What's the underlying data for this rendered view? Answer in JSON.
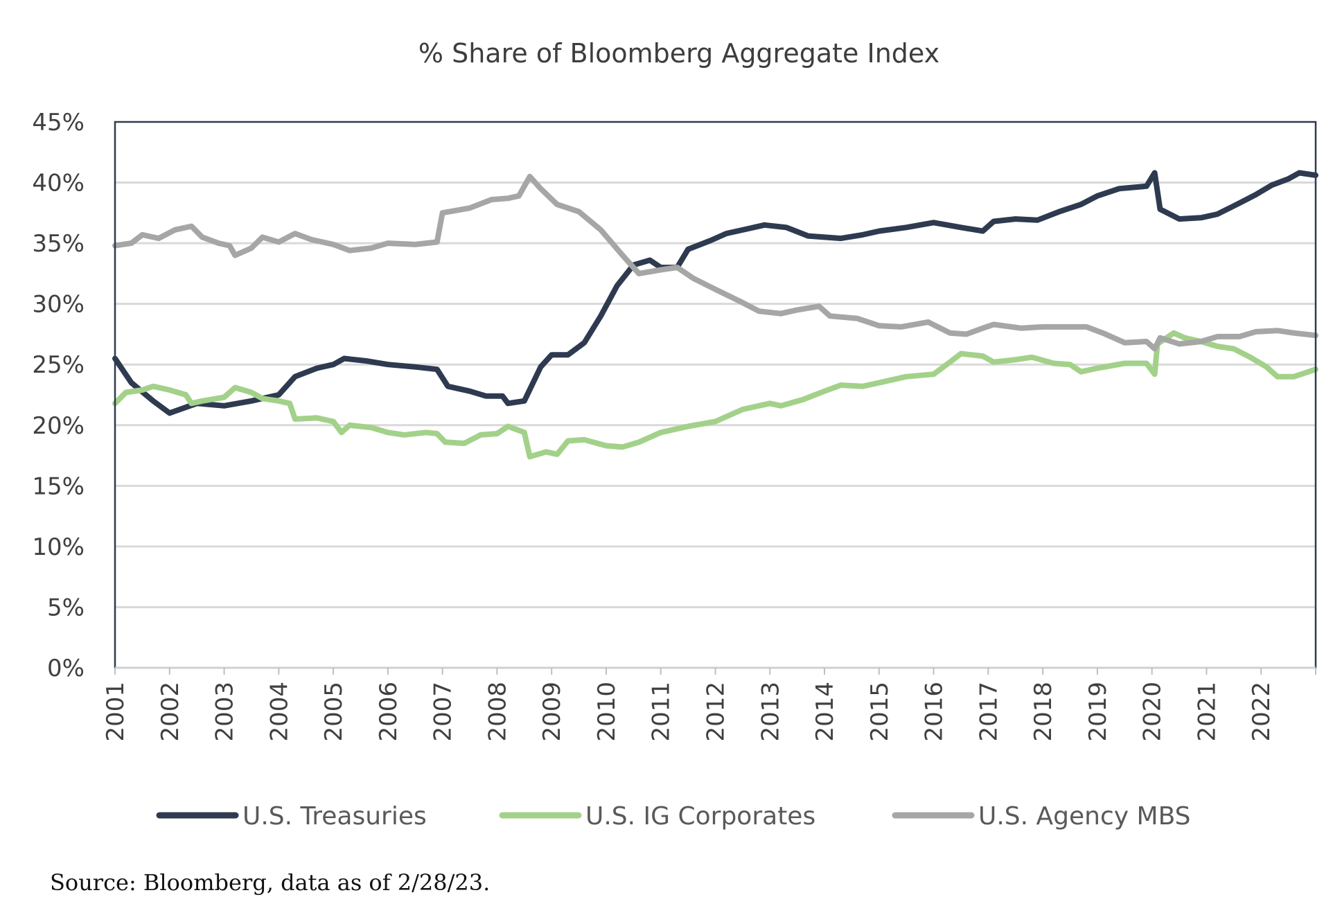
{
  "chart_data": {
    "type": "line",
    "title": "% Share of Bloomberg Aggregate Index",
    "xlabel": "",
    "ylabel": "",
    "xlim": [
      2001,
      2023
    ],
    "ylim": [
      0,
      45
    ],
    "y_ticks": [
      "0%",
      "5%",
      "10%",
      "15%",
      "20%",
      "25%",
      "30%",
      "35%",
      "40%",
      "45%"
    ],
    "x_ticks": [
      "2001",
      "2002",
      "2003",
      "2004",
      "2005",
      "2006",
      "2007",
      "2008",
      "2009",
      "2010",
      "2011",
      "2012",
      "2013",
      "2014",
      "2015",
      "2016",
      "2017",
      "2018",
      "2019",
      "2020",
      "2021",
      "2022"
    ],
    "grid": true,
    "legend_position": "bottom",
    "series": [
      {
        "name": "U.S. Treasuries",
        "color": "#2e3a4f",
        "x": [
          2001.0,
          2001.3,
          2001.7,
          2002.0,
          2002.5,
          2003.0,
          2003.5,
          2004.0,
          2004.3,
          2004.7,
          2005.0,
          2005.2,
          2005.6,
          2006.0,
          2006.5,
          2006.9,
          2007.1,
          2007.5,
          2007.8,
          2008.1,
          2008.2,
          2008.5,
          2008.8,
          2009.0,
          2009.3,
          2009.6,
          2009.9,
          2010.2,
          2010.5,
          2010.8,
          2011.0,
          2011.3,
          2011.5,
          2011.9,
          2012.2,
          2012.6,
          2012.9,
          2013.3,
          2013.7,
          2014.0,
          2014.3,
          2014.7,
          2015.0,
          2015.5,
          2016.0,
          2016.5,
          2016.9,
          2017.1,
          2017.5,
          2017.9,
          2018.3,
          2018.7,
          2019.0,
          2019.4,
          2019.9,
          2020.05,
          2020.15,
          2020.5,
          2020.9,
          2021.2,
          2021.6,
          2021.9,
          2022.2,
          2022.5,
          2022.7,
          2023.0
        ],
        "y": [
          25.5,
          23.5,
          22,
          21,
          21.8,
          21.6,
          22,
          22.5,
          24,
          24.7,
          25,
          25.5,
          25.3,
          25,
          24.8,
          24.6,
          23.2,
          22.8,
          22.4,
          22.4,
          21.8,
          22,
          24.8,
          25.8,
          25.8,
          26.8,
          29,
          31.5,
          33.2,
          33.6,
          33,
          33,
          34.5,
          35.2,
          35.8,
          36.2,
          36.5,
          36.3,
          35.6,
          35.5,
          35.4,
          35.7,
          36,
          36.3,
          36.7,
          36.3,
          36,
          36.8,
          37,
          36.9,
          37.6,
          38.2,
          38.9,
          39.5,
          39.7,
          40.8,
          37.8,
          37,
          37.1,
          37.4,
          38.3,
          39,
          39.8,
          40.3,
          40.8,
          40.6
        ]
      },
      {
        "name": "U.S. IG Corporates",
        "color": "#a3d18a",
        "x": [
          2001.0,
          2001.2,
          2001.5,
          2001.7,
          2002.0,
          2002.3,
          2002.4,
          2002.6,
          2003.0,
          2003.2,
          2003.5,
          2003.7,
          2004.0,
          2004.2,
          2004.3,
          2004.7,
          2005.0,
          2005.15,
          2005.3,
          2005.7,
          2006.0,
          2006.3,
          2006.7,
          2006.9,
          2007.05,
          2007.4,
          2007.7,
          2008.0,
          2008.2,
          2008.5,
          2008.6,
          2008.9,
          2009.1,
          2009.3,
          2009.6,
          2010.0,
          2010.3,
          2010.6,
          2011.0,
          2011.5,
          2012.0,
          2012.5,
          2013.0,
          2013.2,
          2013.6,
          2014.0,
          2014.3,
          2014.7,
          2015.0,
          2015.5,
          2016.0,
          2016.3,
          2016.5,
          2016.9,
          2017.1,
          2017.5,
          2017.8,
          2018.2,
          2018.5,
          2018.7,
          2019.0,
          2019.5,
          2019.9,
          2020.05,
          2020.1,
          2020.4,
          2020.6,
          2020.9,
          2021.2,
          2021.5,
          2021.8,
          2022.1,
          2022.3,
          2022.6,
          2022.8,
          2023.0
        ],
        "y": [
          21.8,
          22.7,
          22.9,
          23.2,
          22.9,
          22.5,
          21.8,
          22.0,
          22.3,
          23.1,
          22.7,
          22.2,
          22.0,
          21.8,
          20.5,
          20.6,
          20.3,
          19.4,
          20,
          19.8,
          19.4,
          19.2,
          19.4,
          19.3,
          18.6,
          18.5,
          19.2,
          19.3,
          19.9,
          19.4,
          17.4,
          17.8,
          17.6,
          18.7,
          18.8,
          18.3,
          18.2,
          18.6,
          19.4,
          19.9,
          20.3,
          21.3,
          21.8,
          21.6,
          22.1,
          22.8,
          23.3,
          23.2,
          23.5,
          24.0,
          24.2,
          25.2,
          25.9,
          25.7,
          25.2,
          25.4,
          25.6,
          25.1,
          25.0,
          24.4,
          24.7,
          25.1,
          25.1,
          24.2,
          26.7,
          27.6,
          27.2,
          26.9,
          26.5,
          26.3,
          25.6,
          24.8,
          24.0,
          24.0,
          24.3,
          24.6
        ]
      },
      {
        "name": "U.S. Agency MBS",
        "color": "#a6a6a6",
        "x": [
          2001.0,
          2001.3,
          2001.5,
          2001.8,
          2002.1,
          2002.4,
          2002.6,
          2002.9,
          2003.1,
          2003.2,
          2003.5,
          2003.7,
          2004.0,
          2004.3,
          2004.6,
          2005.0,
          2005.3,
          2005.7,
          2006.0,
          2006.5,
          2006.9,
          2007.0,
          2007.5,
          2007.9,
          2008.2,
          2008.4,
          2008.6,
          2008.8,
          2009.1,
          2009.5,
          2009.9,
          2010.3,
          2010.6,
          2011.0,
          2011.3,
          2011.6,
          2012.0,
          2012.5,
          2012.8,
          2013.2,
          2013.5,
          2013.9,
          2014.1,
          2014.6,
          2015.0,
          2015.4,
          2015.9,
          2016.3,
          2016.6,
          2016.9,
          2017.1,
          2017.6,
          2018.0,
          2018.5,
          2018.8,
          2019.1,
          2019.5,
          2019.9,
          2020.05,
          2020.15,
          2020.5,
          2020.9,
          2021.2,
          2021.6,
          2021.9,
          2022.3,
          2022.6,
          2023.0
        ],
        "y": [
          34.8,
          35.0,
          35.7,
          35.4,
          36.1,
          36.4,
          35.5,
          35.0,
          34.8,
          34.0,
          34.6,
          35.5,
          35.1,
          35.8,
          35.3,
          34.9,
          34.4,
          34.6,
          35.0,
          34.9,
          35.1,
          37.5,
          37.9,
          38.6,
          38.7,
          38.9,
          40.5,
          39.5,
          38.2,
          37.6,
          36.1,
          34.0,
          32.5,
          32.8,
          33.0,
          32.1,
          31.2,
          30.1,
          29.4,
          29.2,
          29.5,
          29.8,
          29.0,
          28.8,
          28.2,
          28.1,
          28.5,
          27.6,
          27.5,
          28.0,
          28.3,
          28.0,
          28.1,
          28.1,
          28.1,
          27.6,
          26.8,
          26.9,
          26.3,
          27.2,
          26.7,
          26.9,
          27.3,
          27.3,
          27.7,
          27.8,
          27.6,
          27.4
        ]
      }
    ]
  },
  "source_note": "Source: Bloomberg, data as of 2/28/23."
}
